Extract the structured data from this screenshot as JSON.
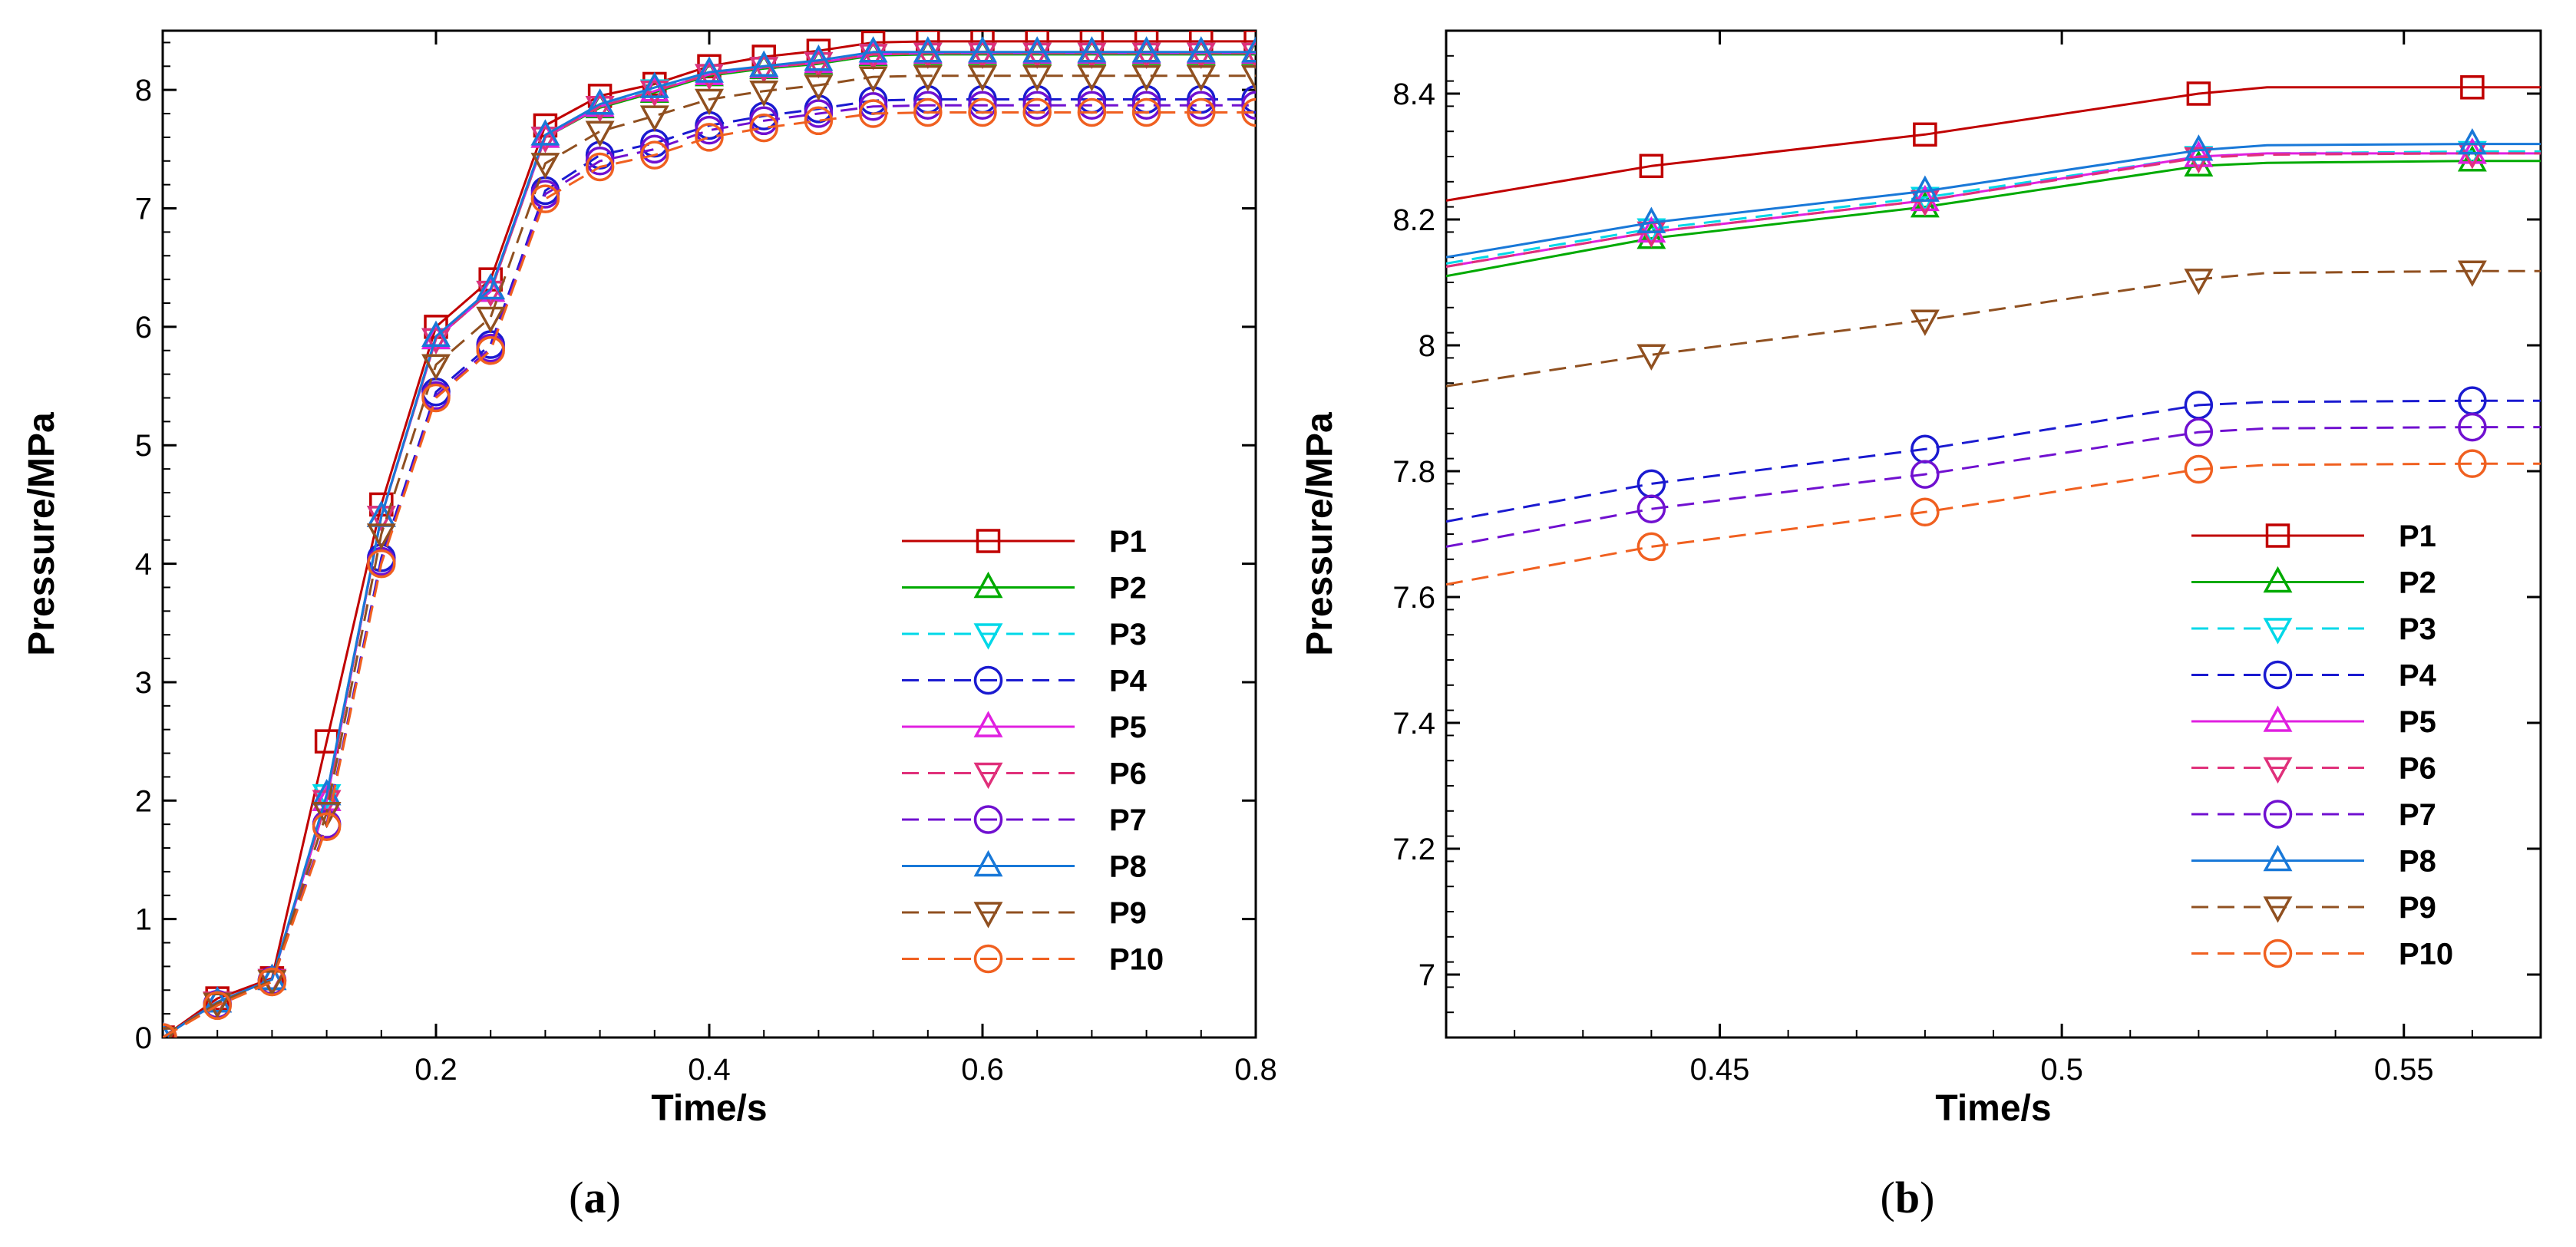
{
  "panels": [
    {
      "caption_open": "(",
      "caption_letter": "a",
      "caption_close": ")"
    },
    {
      "caption_open": "(",
      "caption_letter": "b",
      "caption_close": ")"
    }
  ],
  "chart_data": [
    {
      "type": "line",
      "xlabel": "Time/s",
      "ylabel": "Pressure/MPa",
      "xlim": [
        0,
        0.8
      ],
      "ylim": [
        0,
        8.5
      ],
      "xticks": [
        0.2,
        0.4,
        0.6,
        0.8
      ],
      "xtick_labels": [
        "0.2",
        "0.4",
        "0.6",
        "0.8"
      ],
      "yticks": [
        0,
        1,
        2,
        3,
        4,
        5,
        6,
        7,
        8
      ],
      "ytick_labels": [
        "0",
        "1",
        "2",
        "3",
        "4",
        "5",
        "6",
        "7",
        "8"
      ],
      "legend_position": "bottom-right",
      "grid": false,
      "x": [
        0,
        0.04,
        0.08,
        0.12,
        0.16,
        0.2,
        0.24,
        0.28,
        0.32,
        0.36,
        0.4,
        0.44,
        0.48,
        0.52,
        0.56,
        0.6,
        0.64,
        0.68,
        0.72,
        0.76,
        0.8
      ],
      "series": [
        {
          "name": "P1",
          "color": "#c00000",
          "dash": false,
          "marker": "square",
          "values": [
            0,
            0.33,
            0.5,
            2.5,
            4.5,
            6.0,
            6.4,
            7.7,
            7.95,
            8.05,
            8.2,
            8.28,
            8.33,
            8.4,
            8.41,
            8.41,
            8.41,
            8.41,
            8.41,
            8.41,
            8.41
          ]
        },
        {
          "name": "P2",
          "color": "#00aa00",
          "dash": false,
          "marker": "triangle-up",
          "values": [
            0,
            0.3,
            0.49,
            2.0,
            4.4,
            5.9,
            6.3,
            7.6,
            7.85,
            7.98,
            8.12,
            8.18,
            8.22,
            8.29,
            8.3,
            8.3,
            8.3,
            8.3,
            8.3,
            8.3,
            8.3
          ]
        },
        {
          "name": "P3",
          "color": "#00d8e8",
          "dash": true,
          "marker": "triangle-down",
          "values": [
            0,
            0.3,
            0.49,
            2.05,
            4.4,
            5.9,
            6.3,
            7.6,
            7.86,
            8.0,
            8.13,
            8.19,
            8.23,
            8.3,
            8.31,
            8.31,
            8.31,
            8.31,
            8.31,
            8.31,
            8.31
          ]
        },
        {
          "name": "P4",
          "color": "#1a1ad0",
          "dash": true,
          "marker": "circle",
          "values": [
            0,
            0.28,
            0.48,
            1.8,
            4.05,
            5.45,
            5.85,
            7.15,
            7.45,
            7.55,
            7.7,
            7.78,
            7.84,
            7.91,
            7.92,
            7.92,
            7.92,
            7.92,
            7.92,
            7.92,
            7.92
          ]
        },
        {
          "name": "P5",
          "color": "#e020e0",
          "dash": false,
          "marker": "triangle-up",
          "values": [
            0,
            0.3,
            0.49,
            2.0,
            4.4,
            5.9,
            6.3,
            7.6,
            7.86,
            7.99,
            8.13,
            8.19,
            8.23,
            8.3,
            8.31,
            8.31,
            8.31,
            8.31,
            8.31,
            8.31,
            8.31
          ]
        },
        {
          "name": "P6",
          "color": "#e0307a",
          "dash": true,
          "marker": "triangle-down",
          "values": [
            0,
            0.3,
            0.49,
            2.0,
            4.4,
            5.9,
            6.3,
            7.6,
            7.86,
            7.99,
            8.13,
            8.19,
            8.23,
            8.3,
            8.31,
            8.31,
            8.31,
            8.31,
            8.31,
            8.31,
            8.31
          ]
        },
        {
          "name": "P7",
          "color": "#7010d0",
          "dash": true,
          "marker": "circle",
          "values": [
            0,
            0.28,
            0.48,
            1.8,
            4.02,
            5.42,
            5.82,
            7.12,
            7.4,
            7.5,
            7.66,
            7.74,
            7.8,
            7.86,
            7.87,
            7.87,
            7.87,
            7.87,
            7.87,
            7.87,
            7.87
          ]
        },
        {
          "name": "P8",
          "color": "#1878d8",
          "dash": false,
          "marker": "triangle-up",
          "values": [
            0,
            0.3,
            0.49,
            2.05,
            4.4,
            5.92,
            6.32,
            7.62,
            7.88,
            8.02,
            8.15,
            8.2,
            8.25,
            8.32,
            8.32,
            8.32,
            8.32,
            8.32,
            8.32,
            8.32,
            8.32
          ]
        },
        {
          "name": "P9",
          "color": "#905020",
          "dash": true,
          "marker": "triangle-down",
          "values": [
            0,
            0.29,
            0.48,
            1.9,
            4.25,
            5.68,
            6.08,
            7.38,
            7.65,
            7.78,
            7.92,
            7.99,
            8.04,
            8.11,
            8.12,
            8.12,
            8.12,
            8.12,
            8.12,
            8.12,
            8.12
          ]
        },
        {
          "name": "P10",
          "color": "#f06020",
          "dash": true,
          "marker": "circle",
          "values": [
            0,
            0.27,
            0.47,
            1.78,
            4.0,
            5.4,
            5.8,
            7.08,
            7.35,
            7.45,
            7.6,
            7.68,
            7.74,
            7.8,
            7.81,
            7.81,
            7.81,
            7.81,
            7.81,
            7.81,
            7.81
          ]
        }
      ]
    },
    {
      "type": "line",
      "xlabel": "Time/s",
      "ylabel": "Pressure/MPa",
      "xlim": [
        0.41,
        0.57
      ],
      "ylim": [
        6.9,
        8.5
      ],
      "xticks": [
        0.45,
        0.5,
        0.55
      ],
      "xtick_labels": [
        "0.45",
        "0.5",
        "0.55"
      ],
      "yticks": [
        7,
        7.2,
        7.4,
        7.6,
        7.8,
        8,
        8.2,
        8.4
      ],
      "ytick_labels": [
        "7",
        "7.2",
        "7.4",
        "7.6",
        "7.8",
        "8",
        "8.2",
        "8.4"
      ],
      "legend_position": "bottom-right",
      "grid": false,
      "x": [
        0.41,
        0.44,
        0.48,
        0.52,
        0.53,
        0.56,
        0.57
      ],
      "series": [
        {
          "name": "P1",
          "color": "#c00000",
          "dash": false,
          "marker": "square",
          "values": [
            8.23,
            8.285,
            8.335,
            8.4,
            8.41,
            8.41,
            8.41
          ]
        },
        {
          "name": "P2",
          "color": "#00aa00",
          "dash": false,
          "marker": "triangle-up",
          "values": [
            8.11,
            8.17,
            8.22,
            8.285,
            8.29,
            8.293,
            8.293
          ]
        },
        {
          "name": "P3",
          "color": "#00d8e8",
          "dash": true,
          "marker": "triangle-down",
          "values": [
            8.13,
            8.185,
            8.235,
            8.3,
            8.305,
            8.308,
            8.308
          ]
        },
        {
          "name": "P4",
          "color": "#1a1ad0",
          "dash": true,
          "marker": "circle",
          "values": [
            7.72,
            7.78,
            7.835,
            7.905,
            7.91,
            7.912,
            7.912
          ]
        },
        {
          "name": "P5",
          "color": "#e020e0",
          "dash": false,
          "marker": "triangle-up",
          "values": [
            8.125,
            8.18,
            8.23,
            8.3,
            8.305,
            8.305,
            8.305
          ]
        },
        {
          "name": "P6",
          "color": "#e0307a",
          "dash": true,
          "marker": "triangle-down",
          "values": [
            8.125,
            8.18,
            8.23,
            8.298,
            8.303,
            8.305,
            8.305
          ]
        },
        {
          "name": "P7",
          "color": "#7010d0",
          "dash": true,
          "marker": "circle",
          "values": [
            7.68,
            7.74,
            7.795,
            7.862,
            7.868,
            7.87,
            7.87
          ]
        },
        {
          "name": "P8",
          "color": "#1878d8",
          "dash": false,
          "marker": "triangle-up",
          "values": [
            8.14,
            8.195,
            8.245,
            8.31,
            8.318,
            8.32,
            8.32
          ]
        },
        {
          "name": "P9",
          "color": "#905020",
          "dash": true,
          "marker": "triangle-down",
          "values": [
            7.935,
            7.985,
            8.04,
            8.105,
            8.115,
            8.118,
            8.118
          ]
        },
        {
          "name": "P10",
          "color": "#f06020",
          "dash": true,
          "marker": "circle",
          "values": [
            7.62,
            7.68,
            7.735,
            7.803,
            7.81,
            7.812,
            7.812
          ]
        }
      ]
    }
  ]
}
